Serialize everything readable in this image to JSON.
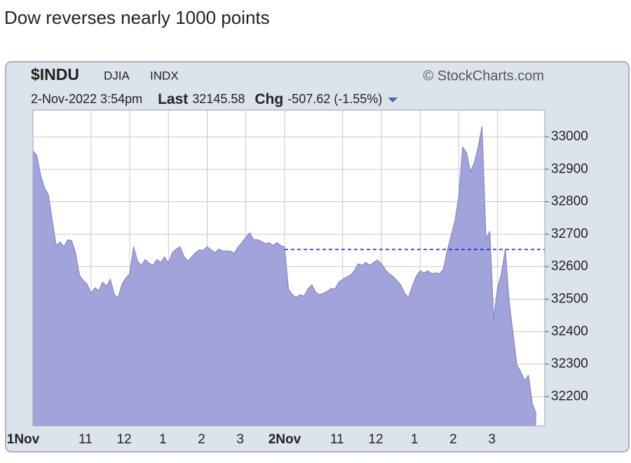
{
  "chart_data": {
    "type": "area",
    "title": "Dow reverses nearly 1000 points",
    "symbol": "$INDU",
    "name": "DJIA",
    "exchange": "INDX",
    "source": "© StockCharts.com",
    "date": "2-Nov-2022 3:54pm",
    "last_label": "Last",
    "last": 32145.58,
    "chg_label": "Chg",
    "chg": -507.62,
    "chg_pct": "(-1.55%)",
    "prev_close": 32653.2,
    "xlim": [
      0,
      13.22
    ],
    "ylim": [
      32110,
      33082
    ],
    "xticks": [
      {
        "value": 0,
        "label": "1Nov"
      },
      {
        "value": 1.5,
        "label": "11"
      },
      {
        "value": 2.5,
        "label": "12"
      },
      {
        "value": 3.5,
        "label": "1"
      },
      {
        "value": 4.5,
        "label": "2"
      },
      {
        "value": 5.5,
        "label": "3"
      },
      {
        "value": 6.5,
        "label": "2Nov"
      },
      {
        "value": 8,
        "label": "11"
      },
      {
        "value": 9,
        "label": "12"
      },
      {
        "value": 10,
        "label": "1"
      },
      {
        "value": 11,
        "label": "2"
      },
      {
        "value": 12,
        "label": "3"
      }
    ],
    "yticks": [
      32200,
      32300,
      32400,
      32500,
      32600,
      32700,
      32800,
      32900,
      33000
    ],
    "grid": true,
    "color": "#a3a3dc",
    "line_color": "#8585c8",
    "prev_close_color": "#1a1adf",
    "x": [
      0,
      0.1,
      0.2,
      0.3,
      0.4,
      0.5,
      0.6,
      0.7,
      0.8,
      0.9,
      1,
      1.1,
      1.2,
      1.3,
      1.4,
      1.5,
      1.6,
      1.7,
      1.8,
      1.9,
      2,
      2.1,
      2.2,
      2.3,
      2.4,
      2.5,
      2.6,
      2.7,
      2.8,
      2.9,
      3,
      3.1,
      3.2,
      3.3,
      3.4,
      3.5,
      3.6,
      3.7,
      3.8,
      3.9,
      4,
      4.1,
      4.2,
      4.3,
      4.4,
      4.5,
      4.6,
      4.7,
      4.8,
      4.9,
      5,
      5.1,
      5.2,
      5.3,
      5.4,
      5.5,
      5.6,
      5.7,
      5.8,
      5.9,
      6,
      6.1,
      6.2,
      6.3,
      6.4,
      6.5,
      6.6,
      6.7,
      6.8,
      6.9,
      7,
      7.1,
      7.2,
      7.3,
      7.4,
      7.5,
      7.6,
      7.7,
      7.8,
      7.9,
      8,
      8.1,
      8.2,
      8.3,
      8.4,
      8.5,
      8.6,
      8.7,
      8.8,
      8.9,
      9,
      9.1,
      9.2,
      9.3,
      9.4,
      9.5,
      9.6,
      9.7,
      9.8,
      9.9,
      10,
      10.1,
      10.2,
      10.3,
      10.4,
      10.5,
      10.6,
      10.7,
      10.8,
      10.9,
      11,
      11.1,
      11.2,
      11.3,
      11.4,
      11.5,
      11.6,
      11.7,
      11.8,
      11.9,
      12,
      12.1,
      12.2,
      12.3,
      12.4,
      12.5,
      12.6,
      12.7,
      12.8,
      12.9,
      13
    ],
    "values": [
      32957,
      32942,
      32881,
      32842,
      32821,
      32741,
      32665,
      32676,
      32661,
      32683,
      32680,
      32643,
      32574,
      32557,
      32546,
      32518,
      32535,
      32526,
      32552,
      32540,
      32561,
      32514,
      32505,
      32546,
      32565,
      32578,
      32661,
      32617,
      32604,
      32622,
      32611,
      32604,
      32622,
      32613,
      32630,
      32611,
      32643,
      32654,
      32661,
      32632,
      32617,
      32630,
      32643,
      32652,
      32650,
      32661,
      32652,
      32643,
      32654,
      32648,
      32648,
      32648,
      32641,
      32661,
      32674,
      32691,
      32704,
      32683,
      32683,
      32678,
      32671,
      32674,
      32665,
      32674,
      32665,
      32661,
      32531,
      32514,
      32505,
      32514,
      32509,
      32531,
      32544,
      32522,
      32514,
      32518,
      32524,
      32533,
      32531,
      32552,
      32561,
      32568,
      32574,
      32587,
      32609,
      32604,
      32613,
      32604,
      32613,
      32620,
      32609,
      32591,
      32578,
      32570,
      32557,
      32544,
      32518,
      32505,
      32540,
      32570,
      32587,
      32581,
      32587,
      32578,
      32581,
      32578,
      32591,
      32648,
      32695,
      32741,
      32816,
      32968,
      32950,
      32892,
      32920,
      32968,
      33032,
      32687,
      32708,
      32438,
      32535,
      32578,
      32654,
      32492,
      32395,
      32297,
      32276,
      32250,
      32265,
      32178,
      32145.58
    ]
  }
}
